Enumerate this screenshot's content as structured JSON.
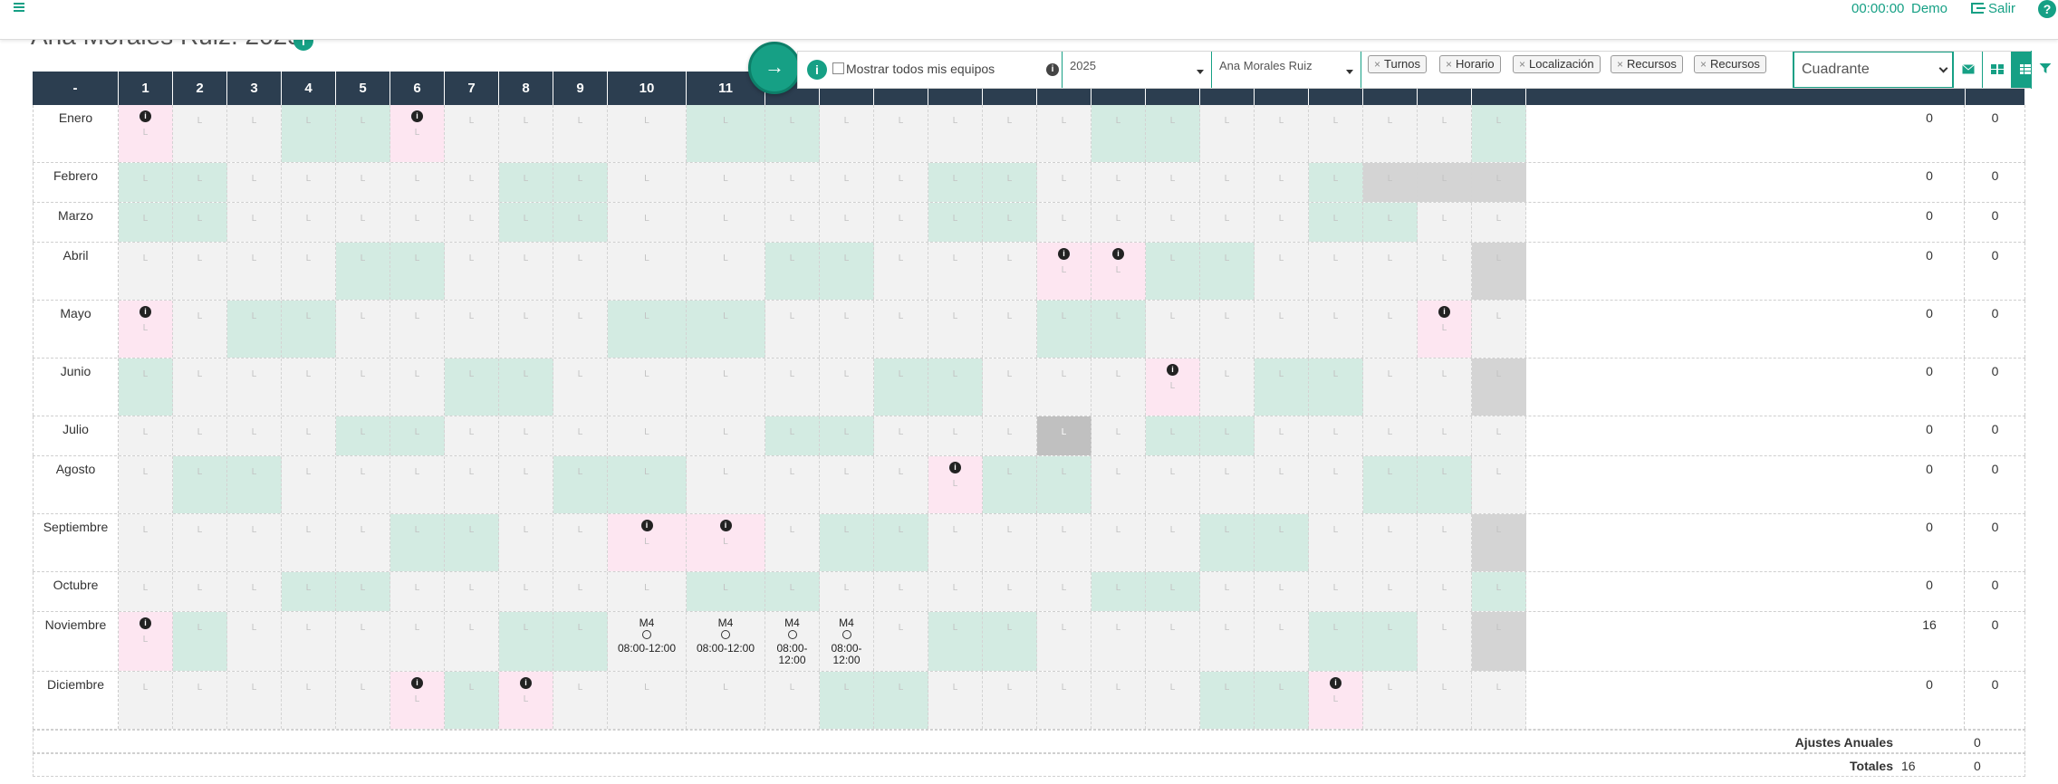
{
  "topbar": {
    "timer": "00:00:00",
    "user": "Demo",
    "logout": "Salir"
  },
  "page": {
    "title": "Ana Morales Ruiz: 2025"
  },
  "toolbar": {
    "show_all_label": "Mostrar todos mis equipos",
    "year": "2025",
    "person": "Ana Morales Ruiz",
    "tags": [
      "Turnos",
      "Horario",
      "Localización",
      "Recursos",
      "Recursos"
    ],
    "view": "Cuadrante"
  },
  "calendar": {
    "header": [
      "-",
      "1",
      "2",
      "3",
      "4",
      "5",
      "6",
      "7",
      "8",
      "9",
      "10",
      "11"
    ],
    "day_mark": "L",
    "colors": {
      "header": "#2c3e50",
      "weekend": "#d3ebe2",
      "weekday": "#f2f2f2",
      "holiday": "#fde6f1",
      "closed": "#d4d4d4",
      "closed_dark": "#c0c0c0",
      "accent": "#16a085"
    },
    "months": [
      {
        "name": "Enero",
        "col1": "0",
        "col2": "0"
      },
      {
        "name": "Febrero",
        "col1": "0",
        "col2": "0"
      },
      {
        "name": "Marzo",
        "col1": "0",
        "col2": "0"
      },
      {
        "name": "Abril",
        "col1": "0",
        "col2": "0"
      },
      {
        "name": "Mayo",
        "col1": "0",
        "col2": "0"
      },
      {
        "name": "Junio",
        "col1": "0",
        "col2": "0"
      },
      {
        "name": "Julio",
        "col1": "0",
        "col2": "0"
      },
      {
        "name": "Agosto",
        "col1": "0",
        "col2": "0"
      },
      {
        "name": "Septiembre",
        "col1": "0",
        "col2": "0"
      },
      {
        "name": "Octubre",
        "col1": "0",
        "col2": "0"
      },
      {
        "name": "Noviembre",
        "col1": "16",
        "col2": "0"
      },
      {
        "name": "Diciembre",
        "col1": "0",
        "col2": "0"
      }
    ],
    "shift": {
      "code": "M4",
      "time": "08:00-12:00"
    }
  },
  "footer": {
    "ajustes_label": "Ajustes Anuales",
    "ajustes_value": "0",
    "totales_label": "Totales",
    "totales_value1": "16",
    "totales_value2": "0"
  }
}
